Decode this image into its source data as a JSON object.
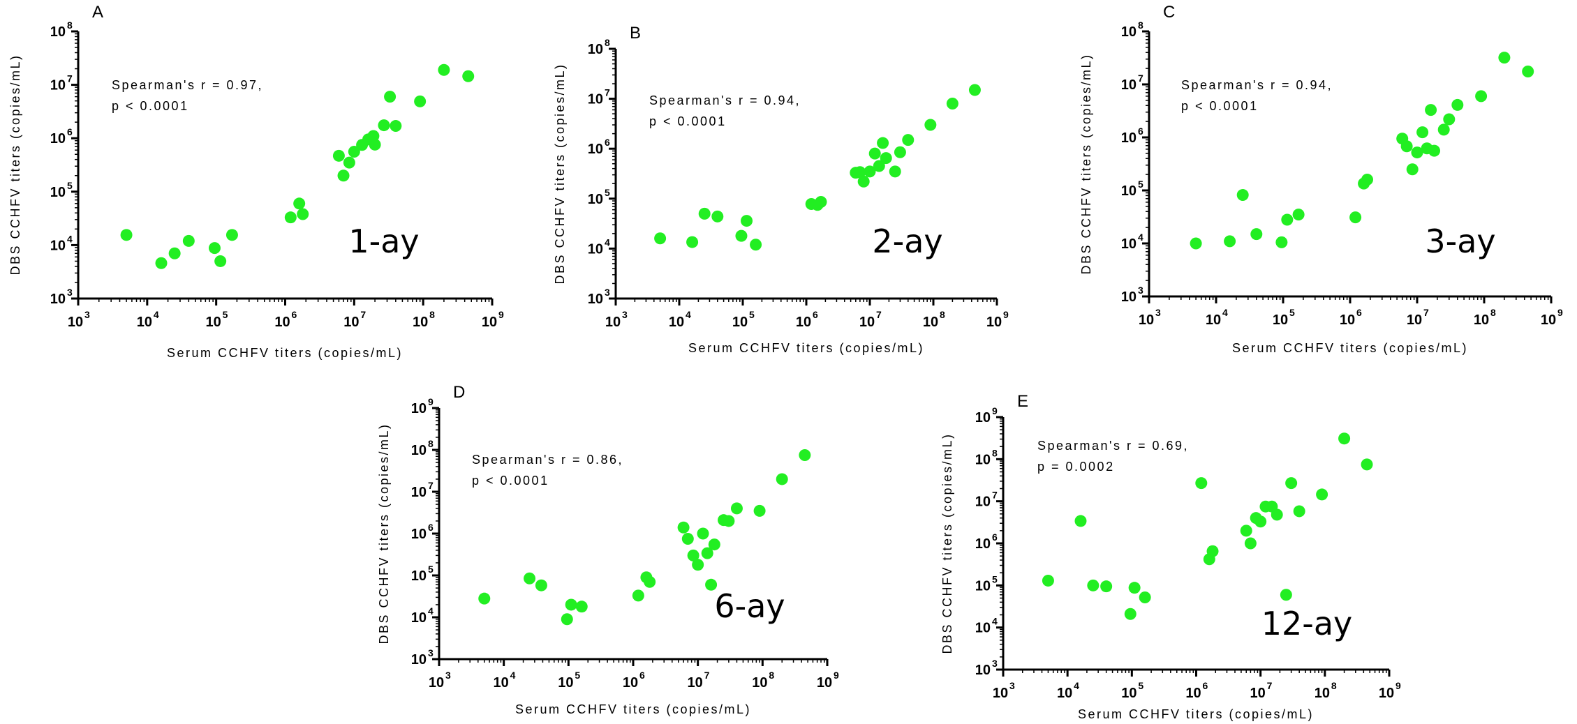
{
  "figure": {
    "point_color": "#22ee22"
  },
  "chart_data": [
    {
      "panel": "A",
      "type": "scatter",
      "title": "1-ay",
      "annotation": [
        "Spearman's r = 0.97,",
        "p < 0.0001"
      ],
      "xlabel": "Serum CCHFV titers (copies/mL)",
      "ylabel": "DBS CCHFV titers (copies/mL)",
      "x_scale": "log",
      "y_scale": "log",
      "xlim": [
        1000,
        1000000000
      ],
      "ylim": [
        1000,
        100000000
      ],
      "points": [
        [
          5000,
          15500
        ],
        [
          16000,
          4600
        ],
        [
          25000,
          7000
        ],
        [
          40000,
          12000
        ],
        [
          95000,
          8800
        ],
        [
          115000,
          5000
        ],
        [
          170000,
          15500
        ],
        [
          1200000,
          33000
        ],
        [
          1600000,
          60000
        ],
        [
          1800000,
          38000
        ],
        [
          6000000,
          470000
        ],
        [
          7000000,
          200000
        ],
        [
          8500000,
          350000
        ],
        [
          10000000,
          560000
        ],
        [
          13000000,
          750000
        ],
        [
          16000000,
          950000
        ],
        [
          19000000,
          1100000
        ],
        [
          20000000,
          760000
        ],
        [
          27000000,
          1750000
        ],
        [
          33000000,
          6000000
        ],
        [
          40000000,
          1700000
        ],
        [
          90000000,
          4900000
        ],
        [
          200000000,
          19000000
        ],
        [
          450000000,
          14500000
        ]
      ]
    },
    {
      "panel": "B",
      "type": "scatter",
      "title": "2-ay",
      "annotation": [
        "Spearman's r = 0.94,",
        "p < 0.0001"
      ],
      "xlabel": "Serum CCHFV titers (copies/mL)",
      "ylabel": "DBS CCHFV titers (copies/mL)",
      "x_scale": "log",
      "y_scale": "log",
      "xlim": [
        1000,
        1000000000
      ],
      "ylim": [
        1000,
        100000000
      ],
      "points": [
        [
          5000,
          16000
        ],
        [
          16000,
          13500
        ],
        [
          25000,
          50000
        ],
        [
          40000,
          44000
        ],
        [
          95000,
          18000
        ],
        [
          115000,
          36000
        ],
        [
          160000,
          12000
        ],
        [
          1200000,
          78000
        ],
        [
          1500000,
          75000
        ],
        [
          1700000,
          86000
        ],
        [
          6000000,
          330000
        ],
        [
          7000000,
          340000
        ],
        [
          8000000,
          220000
        ],
        [
          10000000,
          350000
        ],
        [
          12000000,
          800000
        ],
        [
          14000000,
          450000
        ],
        [
          16000000,
          1300000
        ],
        [
          18000000,
          650000
        ],
        [
          25000000,
          350000
        ],
        [
          30000000,
          850000
        ],
        [
          40000000,
          1500000
        ],
        [
          90000000,
          3000000
        ],
        [
          200000000,
          8000000
        ],
        [
          450000000,
          15000000
        ]
      ]
    },
    {
      "panel": "C",
      "type": "scatter",
      "title": "3-ay",
      "annotation": [
        "Spearman's r = 0.94,",
        "p < 0.0001"
      ],
      "xlabel": "Serum CCHFV titers (copies/mL)",
      "ylabel": "DBS CCHFV titers (copies/mL)",
      "x_scale": "log",
      "y_scale": "log",
      "xlim": [
        1000,
        1000000000
      ],
      "ylim": [
        1000,
        100000000
      ],
      "points": [
        [
          5000,
          10000
        ],
        [
          16000,
          11000
        ],
        [
          25000,
          82000
        ],
        [
          40000,
          15000
        ],
        [
          95000,
          10500
        ],
        [
          115000,
          28000
        ],
        [
          170000,
          35000
        ],
        [
          1200000,
          31000
        ],
        [
          1600000,
          135000
        ],
        [
          1800000,
          160000
        ],
        [
          6000000,
          950000
        ],
        [
          7000000,
          680000
        ],
        [
          8500000,
          250000
        ],
        [
          10000000,
          520000
        ],
        [
          12000000,
          1250000
        ],
        [
          14000000,
          620000
        ],
        [
          16000000,
          3300000
        ],
        [
          18000000,
          560000
        ],
        [
          25000000,
          1400000
        ],
        [
          30000000,
          2200000
        ],
        [
          40000000,
          4100000
        ],
        [
          90000000,
          6000000
        ],
        [
          200000000,
          32000000
        ],
        [
          450000000,
          17500000
        ]
      ]
    },
    {
      "panel": "D",
      "type": "scatter",
      "title": "6-ay",
      "annotation": [
        "Spearman's r = 0.86,",
        "p < 0.0001"
      ],
      "xlabel": "Serum CCHFV titers (copies/mL)",
      "ylabel": "DBS CCHFV titers (copies/mL)",
      "x_scale": "log",
      "y_scale": "log",
      "xlim": [
        1000,
        1000000000
      ],
      "ylim": [
        1000,
        1000000000
      ],
      "points": [
        [
          5000,
          28000
        ],
        [
          25000,
          85000
        ],
        [
          38000,
          58000
        ],
        [
          95000,
          9000
        ],
        [
          110000,
          20000
        ],
        [
          160000,
          18000
        ],
        [
          1200000,
          33000
        ],
        [
          1600000,
          90000
        ],
        [
          1800000,
          70000
        ],
        [
          6000000,
          1400000
        ],
        [
          7000000,
          750000
        ],
        [
          8500000,
          300000
        ],
        [
          10000000,
          180000
        ],
        [
          12000000,
          1000000
        ],
        [
          14000000,
          340000
        ],
        [
          16000000,
          60000
        ],
        [
          18000000,
          550000
        ],
        [
          25000000,
          2100000
        ],
        [
          30000000,
          2000000
        ],
        [
          40000000,
          4000000
        ],
        [
          90000000,
          3500000
        ],
        [
          200000000,
          20000000
        ],
        [
          450000000,
          75000000
        ]
      ]
    },
    {
      "panel": "E",
      "type": "scatter",
      "title": "12-ay",
      "annotation": [
        "Spearman's r = 0.69,",
        "p = 0.0002"
      ],
      "xlabel": "Serum CCHFV titers (copies/mL)",
      "ylabel": "DBS CCHFV titers (copies/mL)",
      "x_scale": "log",
      "y_scale": "log",
      "xlim": [
        1000,
        1000000000
      ],
      "ylim": [
        1000,
        1000000000
      ],
      "points": [
        [
          5000,
          130000
        ],
        [
          16000,
          3400000
        ],
        [
          25000,
          100000
        ],
        [
          40000,
          95000
        ],
        [
          95000,
          21000
        ],
        [
          110000,
          88000
        ],
        [
          160000,
          52000
        ],
        [
          1200000,
          27000000
        ],
        [
          1600000,
          420000
        ],
        [
          1800000,
          650000
        ],
        [
          6000000,
          2000000
        ],
        [
          7000000,
          1000000
        ],
        [
          8500000,
          4000000
        ],
        [
          10000000,
          3300000
        ],
        [
          12000000,
          7500000
        ],
        [
          15000000,
          7500000
        ],
        [
          18000000,
          4800000
        ],
        [
          25000000,
          60000
        ],
        [
          30000000,
          27000000
        ],
        [
          40000000,
          5800000
        ],
        [
          90000000,
          14500000
        ],
        [
          200000000,
          310000000
        ],
        [
          450000000,
          75000000
        ]
      ]
    }
  ]
}
